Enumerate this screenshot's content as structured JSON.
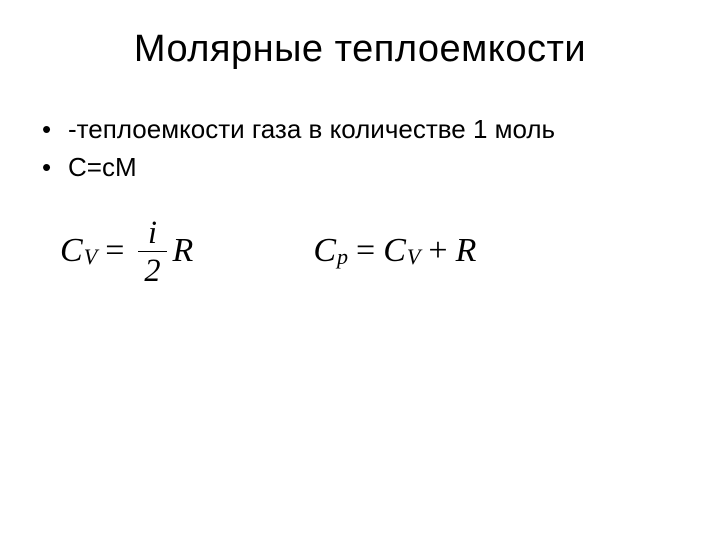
{
  "title": "Молярные теплоемкости",
  "bullets": [
    "-теплоемкости газа в количестве 1 моль",
    "C=cM"
  ],
  "formulas": {
    "cv": {
      "lhs_base": "C",
      "lhs_sub": "V",
      "eq": "=",
      "frac_num": "i",
      "frac_den": "2",
      "rhs_tail": "R"
    },
    "cp": {
      "lhs_base": "C",
      "lhs_sub": "p",
      "eq": "=",
      "rhs1_base": "C",
      "rhs1_sub": "V",
      "plus": "+",
      "rhs2": "R"
    }
  },
  "style": {
    "background_color": "#ffffff",
    "text_color": "#000000",
    "title_fontsize": 38,
    "bullet_fontsize": 26,
    "formula_fontsize": 34,
    "formula_font": "Times New Roman"
  }
}
